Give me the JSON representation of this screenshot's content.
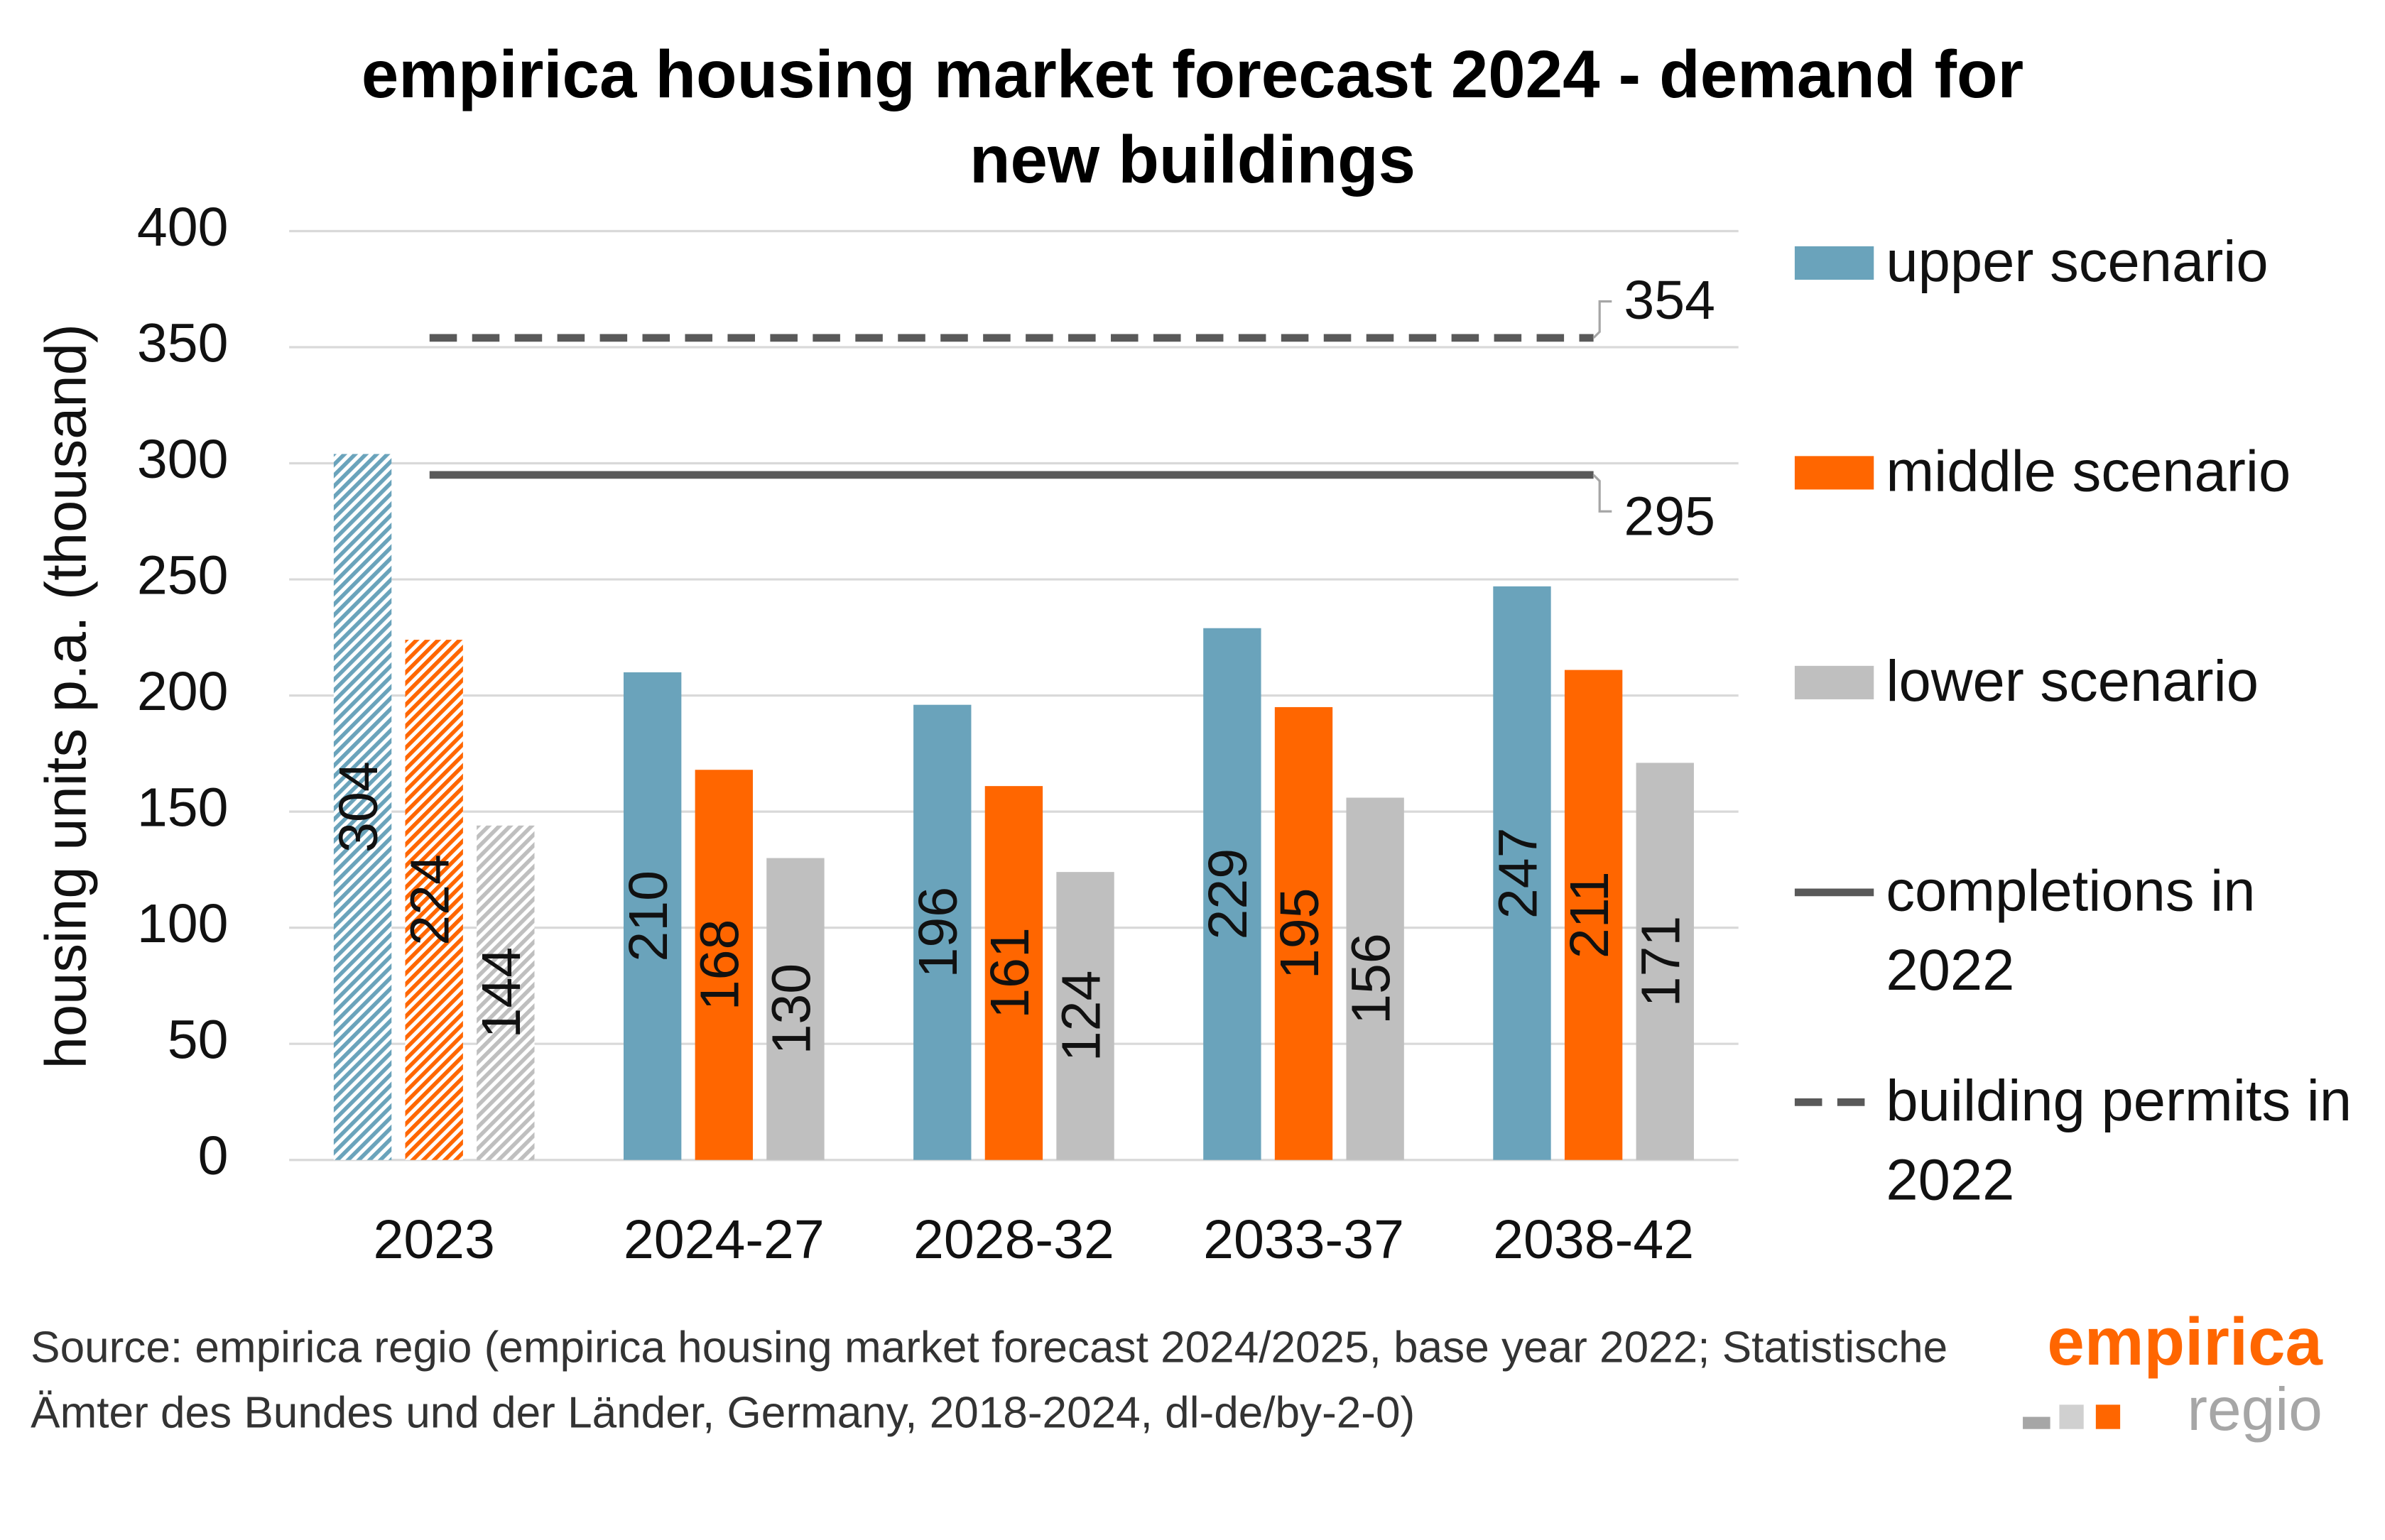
{
  "chart_data": {
    "type": "bar",
    "title": "empirica housing market forecast 2024 - demand for new buildings",
    "y_label": "housing units p.a. (thousand)",
    "categories": [
      "2023",
      "2024-27",
      "2028-32",
      "2033-37",
      "2038-42"
    ],
    "hatched": [
      true,
      false,
      false,
      false,
      false
    ],
    "series": [
      {
        "name": "upper scenario",
        "color": "#6aa3bb",
        "values": [
          304,
          210,
          196,
          229,
          247
        ]
      },
      {
        "name": "middle scenario",
        "color": "#ff6600",
        "values": [
          224,
          168,
          161,
          195,
          211
        ]
      },
      {
        "name": "lower scenario",
        "color": "#bfbfbf",
        "values": [
          144,
          130,
          124,
          156,
          171
        ]
      }
    ],
    "lines": [
      {
        "name": "completions in 2022",
        "value": 295,
        "color": "#595959",
        "dash": false
      },
      {
        "name": "building permits in 2022",
        "value": 354,
        "color": "#595959",
        "dash": true
      }
    ],
    "ylim": [
      0,
      400
    ],
    "yticks": [
      0,
      50,
      100,
      150,
      200,
      250,
      300,
      350,
      400
    ],
    "grid": true,
    "legend": "right",
    "source": "Source: empirica regio (empirica housing market forecast 2024/2025, base year 2022; Statistische Ämter des Bundes und der Länder, Germany, 2018-2024, dl-de/by-2-0)",
    "logo": {
      "top": "empirica",
      "bottom": "regio"
    }
  }
}
